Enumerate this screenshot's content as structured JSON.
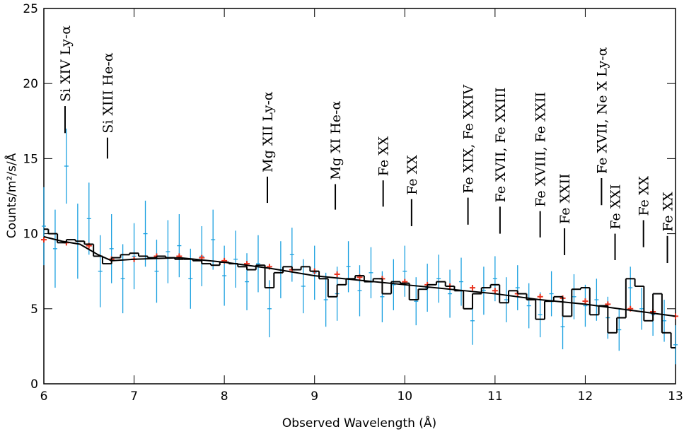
{
  "chart_data": {
    "type": "spectrum",
    "x_label": "Observed Wavelength (Å)",
    "y_label": "Counts/m²/s/Å",
    "xlim": [
      6,
      13
    ],
    "xticks": [
      6,
      7,
      8,
      9,
      10,
      11,
      12,
      13
    ],
    "ylim": [
      0,
      25
    ],
    "yticks": [
      0,
      5,
      10,
      15,
      20,
      25
    ],
    "series": [
      {
        "type": "errorbar",
        "color": "#1aa0e0",
        "x": [
          6.0,
          6.125,
          6.25,
          6.375,
          6.5,
          6.625,
          6.75,
          6.875,
          7.0,
          7.125,
          7.25,
          7.375,
          7.5,
          7.625,
          7.75,
          7.875,
          8.0,
          8.125,
          8.25,
          8.375,
          8.5,
          8.625,
          8.75,
          8.875,
          9.0,
          9.125,
          9.25,
          9.375,
          9.5,
          9.625,
          9.75,
          9.875,
          10.0,
          10.125,
          10.25,
          10.375,
          10.5,
          10.625,
          10.75,
          10.875,
          11.0,
          11.125,
          11.25,
          11.375,
          11.5,
          11.625,
          11.75,
          11.875,
          12.0,
          12.125,
          12.25,
          12.375,
          12.5,
          12.625,
          12.75,
          12.875,
          13.0
        ],
        "values": [
          10.5,
          9.0,
          14.5,
          9.5,
          11.0,
          7.5,
          9.0,
          7.0,
          8.5,
          10.0,
          7.5,
          8.8,
          9.2,
          7.0,
          8.5,
          9.6,
          7.2,
          8.3,
          6.8,
          8.0,
          5.0,
          7.6,
          8.6,
          6.5,
          7.4,
          5.6,
          6.0,
          7.8,
          6.2,
          7.4,
          5.8,
          6.6,
          7.5,
          5.5,
          6.4,
          7.0,
          6.0,
          6.8,
          4.2,
          6.2,
          7.0,
          5.6,
          6.4,
          5.2,
          4.6,
          6.0,
          3.8,
          5.8,
          5.2,
          5.6,
          4.4,
          3.6,
          6.4,
          5.0,
          4.6,
          4.2,
          2.6
        ],
        "errors": [
          2.6,
          2.6,
          2.5,
          2.5,
          2.4,
          2.4,
          2.3,
          2.3,
          2.2,
          2.2,
          2.1,
          2.1,
          2.1,
          2.0,
          2.0,
          2.0,
          2.0,
          1.9,
          1.9,
          1.9,
          1.9,
          1.9,
          1.8,
          1.8,
          1.8,
          1.8,
          1.8,
          1.7,
          1.7,
          1.7,
          1.7,
          1.7,
          1.7,
          1.6,
          1.6,
          1.6,
          1.6,
          1.6,
          1.6,
          1.6,
          1.5,
          1.5,
          1.5,
          1.5,
          1.5,
          1.5,
          1.5,
          1.5,
          1.4,
          1.4,
          1.4,
          1.4,
          1.4,
          1.4,
          1.4,
          1.4,
          1.3
        ]
      },
      {
        "type": "scatter",
        "color": "#e8321e",
        "x": [
          6.0,
          6.25,
          6.5,
          6.75,
          7.0,
          7.25,
          7.5,
          7.75,
          8.0,
          8.25,
          8.5,
          8.75,
          9.0,
          9.25,
          9.5,
          9.75,
          10.0,
          10.25,
          10.5,
          10.75,
          11.0,
          11.25,
          11.5,
          11.75,
          12.0,
          12.25,
          12.5,
          12.75,
          13.0
        ],
        "values": [
          9.6,
          9.4,
          9.2,
          8.3,
          8.3,
          8.5,
          8.5,
          8.4,
          8.2,
          8.0,
          7.8,
          7.6,
          7.5,
          7.3,
          7.1,
          7.0,
          6.8,
          6.6,
          6.5,
          6.4,
          6.2,
          6.0,
          5.8,
          5.7,
          5.5,
          5.3,
          5.0,
          4.8,
          4.5
        ]
      },
      {
        "type": "step",
        "color": "#000000",
        "x": [
          6.0,
          6.1,
          6.2,
          6.3,
          6.4,
          6.5,
          6.6,
          6.7,
          6.8,
          6.9,
          7.0,
          7.1,
          7.2,
          7.3,
          7.4,
          7.5,
          7.6,
          7.7,
          7.8,
          7.9,
          8.0,
          8.1,
          8.2,
          8.3,
          8.4,
          8.5,
          8.6,
          8.7,
          8.8,
          8.9,
          9.0,
          9.1,
          9.2,
          9.3,
          9.4,
          9.5,
          9.6,
          9.7,
          9.8,
          9.9,
          10.0,
          10.1,
          10.2,
          10.3,
          10.4,
          10.5,
          10.6,
          10.7,
          10.8,
          10.9,
          11.0,
          11.1,
          11.2,
          11.3,
          11.4,
          11.5,
          11.6,
          11.7,
          11.8,
          11.9,
          12.0,
          12.1,
          12.2,
          12.3,
          12.4,
          12.5,
          12.6,
          12.7,
          12.8,
          12.9,
          13.0
        ],
        "values": [
          10.3,
          10.0,
          9.4,
          9.6,
          9.5,
          9.3,
          8.5,
          8.0,
          8.4,
          8.6,
          8.7,
          8.5,
          8.4,
          8.5,
          8.4,
          8.3,
          8.3,
          8.2,
          8.0,
          7.9,
          8.1,
          8.0,
          7.8,
          7.6,
          7.9,
          6.4,
          7.4,
          7.8,
          7.6,
          7.8,
          7.5,
          7.0,
          5.8,
          6.6,
          7.0,
          7.2,
          6.8,
          7.0,
          6.0,
          6.8,
          6.7,
          5.6,
          6.3,
          6.6,
          6.8,
          6.5,
          6.2,
          5.0,
          6.0,
          6.4,
          6.6,
          5.4,
          6.2,
          6.0,
          5.6,
          4.3,
          5.5,
          5.8,
          4.5,
          6.3,
          6.4,
          4.6,
          5.2,
          3.4,
          4.4,
          7.0,
          6.5,
          4.2,
          6.0,
          3.4,
          2.4
        ]
      },
      {
        "type": "line",
        "color": "#000000",
        "x": [
          6.0,
          6.2,
          6.4,
          6.6,
          6.75,
          7.0,
          7.5,
          8.0,
          8.5,
          9.0,
          9.5,
          10.0,
          10.5,
          11.0,
          11.5,
          12.0,
          12.5,
          13.0
        ],
        "values": [
          9.8,
          9.5,
          9.3,
          8.6,
          8.2,
          8.3,
          8.4,
          8.1,
          7.7,
          7.2,
          6.9,
          6.6,
          6.3,
          6.0,
          5.6,
          5.3,
          4.9,
          4.5
        ]
      }
    ],
    "annotations": [
      {
        "text": "Si XIV Ly-α",
        "x": 6.235,
        "y": 16.7,
        "y_end": 18.5
      },
      {
        "text": "Si XIII He-α",
        "x": 6.705,
        "y": 15.0,
        "y_end": 16.4
      },
      {
        "text": "Mg XII Ly-α",
        "x": 8.477,
        "y": 12.05,
        "y_end": 13.8
      },
      {
        "text": "Mg XI He-α",
        "x": 9.23,
        "y": 11.6,
        "y_end": 13.3
      },
      {
        "text": "Fe XX",
        "x": 9.76,
        "y": 11.8,
        "y_end": 13.55
      },
      {
        "text": "Fe XX",
        "x": 10.075,
        "y": 10.5,
        "y_end": 12.3
      },
      {
        "text": "Fe XIX, Fe XXIV",
        "x": 10.7,
        "y": 10.6,
        "y_end": 12.4
      },
      {
        "text": "Fe XVII, Fe XXIII",
        "x": 11.055,
        "y": 10.0,
        "y_end": 11.8
      },
      {
        "text": "Fe XVIII, Fe XXII",
        "x": 11.5,
        "y": 9.75,
        "y_end": 11.5
      },
      {
        "text": "Fe XXII",
        "x": 11.77,
        "y": 8.57,
        "y_end": 10.36
      },
      {
        "text": "Fe XVII, Ne X Ly-α",
        "x": 12.18,
        "y": 11.9,
        "y_end": 13.7
      },
      {
        "text": "Fe XXI",
        "x": 12.33,
        "y": 8.24,
        "y_end": 10.0
      },
      {
        "text": "Fe XX",
        "x": 12.645,
        "y": 9.1,
        "y_end": 10.9
      },
      {
        "text": "Fe XX",
        "x": 12.91,
        "y": 8.05,
        "y_end": 9.85
      }
    ]
  }
}
